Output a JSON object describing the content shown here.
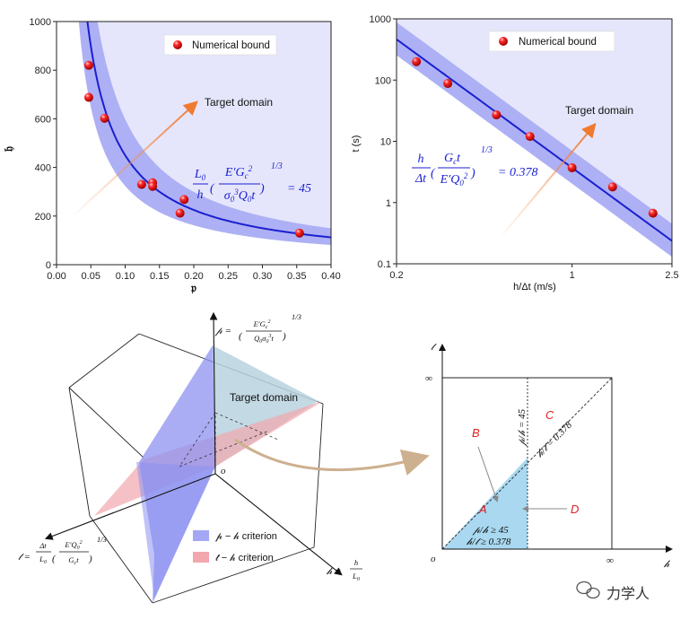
{
  "chart_data": [
    {
      "type": "scatter",
      "panel": "top-left",
      "xlabel": "𝔭",
      "ylabel": "𝔥",
      "xlim": [
        0.0,
        0.4
      ],
      "ylim": [
        0,
        1000
      ],
      "xticks": [
        "0.00",
        "0.05",
        "0.10",
        "0.15",
        "0.20",
        "0.25",
        "0.30",
        "0.35",
        "0.40"
      ],
      "yticks": [
        "0",
        "200",
        "400",
        "600",
        "800",
        "1000"
      ],
      "legend": "Numerical bound",
      "annotation": "Target domain",
      "formula_text": "L0/h (E'Gc²/(σ0³Q0t))^(1/3) = 45",
      "points": [
        [
          0.047,
          820
        ],
        [
          0.047,
          688
        ],
        [
          0.07,
          602
        ],
        [
          0.124,
          330
        ],
        [
          0.14,
          337
        ],
        [
          0.14,
          322
        ],
        [
          0.18,
          212
        ],
        [
          0.186,
          268
        ],
        [
          0.354,
          130
        ]
      ],
      "curve_k": 45
    },
    {
      "type": "scatter",
      "panel": "top-right",
      "scale": "log-log",
      "xlabel": "h/Δt (m/s)",
      "ylabel": "t (s)",
      "xlim": [
        0.2,
        2.5
      ],
      "ylim": [
        0.1,
        1000
      ],
      "xticks": [
        "0.2",
        "1",
        "2.5"
      ],
      "yticks": [
        "0.1",
        "1",
        "10",
        "100",
        "1000"
      ],
      "legend": "Numerical bound",
      "annotation": "Target domain",
      "formula_text": "h/Δt (Gc t/(E'Q0²))^(1/3) = 0.378",
      "points": [
        [
          0.24,
          200
        ],
        [
          0.32,
          88
        ],
        [
          0.5,
          27
        ],
        [
          0.68,
          12
        ],
        [
          1.0,
          3.7
        ],
        [
          1.45,
          1.8
        ],
        [
          2.1,
          0.67
        ]
      ],
      "line_A": 3.7
    }
  ],
  "diagram3d": {
    "p_axis": "𝓅 = (E'Gc² / (Q0σ0³t))^(1/3)",
    "t_axis": "𝓉 = Δt/L0 (E'Q0²/(Gc t))^(1/3)",
    "h_axis": "𝒽 = h/L0",
    "origin": "o",
    "target": "Target domain",
    "legend_blue": "𝓅 − 𝒽 criterion",
    "legend_red": "𝓉 − 𝒽 criterion",
    "colors": {
      "blue": "#8d91f0",
      "red": "#f2a7ae",
      "teal": "#b9d2de"
    }
  },
  "diagram2d": {
    "infinity_x": "∞",
    "infinity_y": "∞",
    "origin": "o",
    "y_axis": "𝓉",
    "x_axis": "𝒽",
    "line1": "𝓅/𝒽 = 45",
    "line2": "𝒽/𝓉 = 0.378",
    "cond1": "𝓅/𝒽 ≥ 45",
    "cond2": "𝒽/𝓉 ≥ 0.378",
    "regions": [
      "A",
      "B",
      "C",
      "D"
    ],
    "colors": {
      "region": "#a9d8f0"
    }
  },
  "watermark": "力学人",
  "colors": {
    "curve": "#1a1fd0",
    "band": "#9a9ef2",
    "domain": "#e5e6fb",
    "arrow": "#f4a070",
    "point": "#e01010"
  }
}
